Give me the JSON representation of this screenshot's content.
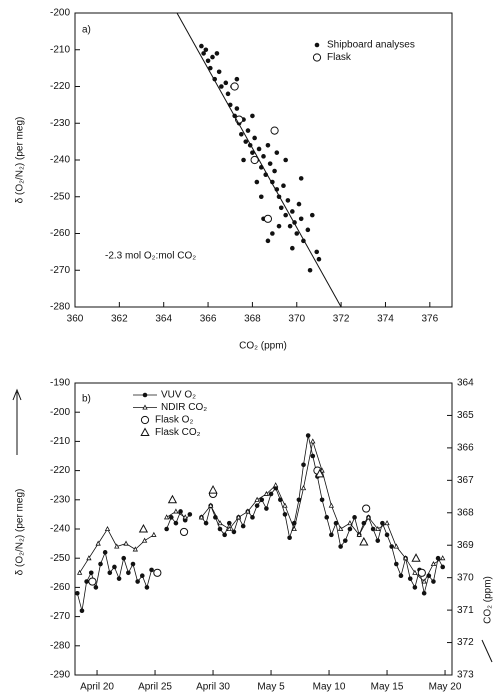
{
  "chart_data": [
    {
      "type": "scatter",
      "panel_label": "a)",
      "x_label": "CO₂ (ppm)",
      "y_label": "δ (O₂/N₂) (per meg)",
      "annotation": "-2.3 mol O₂:mol CO₂",
      "xlim": [
        360,
        377
      ],
      "ylim": [
        -280,
        -200
      ],
      "xticks": [
        360,
        362,
        364,
        366,
        368,
        370,
        372,
        374,
        376
      ],
      "yticks": [
        -280,
        -270,
        -260,
        -250,
        -240,
        -230,
        -220,
        -210,
        -200
      ],
      "legend": "upper right",
      "series": [
        {
          "name": "Shipboard analyses",
          "color": "#111111",
          "marker": "filled-circle",
          "line": false,
          "x": [
            365.7,
            365.8,
            365.9,
            366.0,
            366.1,
            366.2,
            366.3,
            366.5,
            366.6,
            366.8,
            366.9,
            367.0,
            367.1,
            367.2,
            367.3,
            367.4,
            367.5,
            367.6,
            367.7,
            367.8,
            367.9,
            368.0,
            368.1,
            368.2,
            368.3,
            368.4,
            368.5,
            368.6,
            368.7,
            368.8,
            368.9,
            369.0,
            369.1,
            369.2,
            369.3,
            369.4,
            369.5,
            369.6,
            369.7,
            369.8,
            369.9,
            370.0,
            370.1,
            370.2,
            370.3,
            370.5,
            370.7,
            370.9,
            371.0,
            370.6,
            368.7,
            368.9,
            369.2,
            368.4,
            368.2,
            367.6,
            368.0,
            369.1,
            369.5,
            370.2,
            366.4,
            367.3,
            368.5,
            369.8
          ],
          "values": [
            -209,
            -211,
            -210,
            -213,
            -215,
            -212,
            -218,
            -216,
            -220,
            -219,
            -222,
            -225,
            -220,
            -228,
            -226,
            -230,
            -233,
            -229,
            -235,
            -232,
            -236,
            -238,
            -234,
            -240,
            -237,
            -242,
            -239,
            -244,
            -236,
            -241,
            -246,
            -243,
            -248,
            -250,
            -253,
            -247,
            -255,
            -251,
            -258,
            -254,
            -257,
            -260,
            -252,
            -256,
            -262,
            -259,
            -255,
            -265,
            -267,
            -270,
            -262,
            -260,
            -258,
            -250,
            -246,
            -240,
            -228,
            -238,
            -240,
            -245,
            -211,
            -218,
            -256,
            -264
          ]
        },
        {
          "name": "Flask",
          "color": "#111111",
          "marker": "open-circle",
          "line": false,
          "x": [
            367.2,
            369.0,
            368.1,
            367.4,
            368.7
          ],
          "values": [
            -220,
            -232,
            -240,
            -229,
            -256
          ]
        },
        {
          "color": "#111111",
          "marker": "none",
          "line": true,
          "x": [
            364.6,
            372.0
          ],
          "values": [
            -200,
            -280
          ]
        }
      ]
    },
    {
      "type": "line",
      "panel_label": "b)",
      "y_label": "δ (O₂/N₂) (per meg)",
      "y2_label": "CO₂ (ppm)",
      "xlim": [
        18.1,
        50.6
      ],
      "ylim": [
        -290,
        -190
      ],
      "xticks": [
        {
          "value": 20,
          "label": "April 20"
        },
        {
          "value": 25,
          "label": "April 25"
        },
        {
          "value": 30,
          "label": "April 30"
        },
        {
          "value": 35,
          "label": "May 5"
        },
        {
          "value": 40,
          "label": "May 10"
        },
        {
          "value": 45,
          "label": "May 15"
        },
        {
          "value": 50,
          "label": "May 20"
        }
      ],
      "yticks": [
        -290,
        -280,
        -270,
        -260,
        -250,
        -240,
        -230,
        -220,
        -210,
        -200,
        -190
      ],
      "y2lim": [
        373,
        364
      ],
      "y2ticks": [
        364,
        365,
        366,
        367,
        368,
        369,
        370,
        371,
        372,
        373
      ],
      "legend": "upper left",
      "series": [
        {
          "name": "VUV O₂",
          "color": "#111111",
          "marker": "filled-circle",
          "line": true,
          "x": [
            18.3,
            18.7,
            19.1,
            19.5,
            19.9,
            20.3,
            20.7,
            21.1,
            21.5,
            21.9,
            22.3,
            22.7,
            23.1,
            23.5,
            23.9,
            24.3,
            24.7,
            25.1,
            25.6,
            26.0,
            26.4,
            26.8,
            27.2,
            27.6,
            28.0,
            28.5,
            29.0,
            29.4,
            29.8,
            30.2,
            30.6,
            31.0,
            31.4,
            31.8,
            32.2,
            32.6,
            33.0,
            33.4,
            33.8,
            34.2,
            34.6,
            35.0,
            35.4,
            35.8,
            36.2,
            36.6,
            37.0,
            37.4,
            37.8,
            38.2,
            38.6,
            39.0,
            39.4,
            39.8,
            40.2,
            40.6,
            41.0,
            41.4,
            41.8,
            42.2,
            42.6,
            43.0,
            43.4,
            43.8,
            44.2,
            44.6,
            45.0,
            45.4,
            45.8,
            46.2,
            46.6,
            47.0,
            47.4,
            47.8,
            48.2,
            48.6,
            49.0,
            49.4,
            49.8
          ],
          "values": [
            -262,
            -268,
            -258,
            -255,
            -260,
            -252,
            -248,
            -255,
            -253,
            -257,
            -250,
            -255,
            -252,
            -258,
            -256,
            -260,
            -254,
            -255,
            null,
            -240,
            -236,
            -238,
            -234,
            -237,
            -235,
            null,
            -236,
            -238,
            -232,
            -236,
            -240,
            -242,
            -238,
            -241,
            -236,
            -239,
            -234,
            -236,
            -232,
            -230,
            -233,
            -228,
            -226,
            -230,
            -235,
            -243,
            -238,
            -230,
            -218,
            -208,
            -215,
            -222,
            -230,
            -236,
            -242,
            -238,
            -246,
            -244,
            -240,
            -236,
            -242,
            -238,
            -236,
            -240,
            -244,
            -238,
            -242,
            -246,
            -252,
            -256,
            -250,
            -257,
            -260,
            -254,
            -262,
            -256,
            -258,
            -250,
            -253
          ]
        },
        {
          "name": "NDIR CO₂",
          "color": "#111111",
          "marker": "small-triangle",
          "line": true,
          "axis": "y2",
          "x": [
            18.5,
            19.3,
            20.1,
            20.9,
            21.7,
            22.5,
            23.3,
            24.1,
            24.9,
            25.4,
            26.0,
            26.8,
            27.6,
            28.3,
            29.0,
            29.8,
            30.6,
            31.4,
            32.2,
            33.0,
            33.8,
            34.6,
            35.4,
            36.2,
            37.0,
            37.8,
            38.6,
            39.4,
            40.2,
            41.0,
            41.8,
            42.6,
            43.4,
            44.2,
            45.0,
            45.8,
            46.6,
            47.4,
            48.2,
            49.0,
            49.8
          ],
          "values": [
            369.85,
            369.4,
            368.95,
            368.5,
            369.04,
            368.95,
            369.13,
            368.86,
            368.68,
            null,
            368.14,
            367.96,
            368.14,
            null,
            368.14,
            367.78,
            368.32,
            368.5,
            368.14,
            367.96,
            367.6,
            367.42,
            367.15,
            367.78,
            368.5,
            367.24,
            365.8,
            366.7,
            367.78,
            368.5,
            368.32,
            368.68,
            368.14,
            368.5,
            368.32,
            369.04,
            369.4,
            369.85,
            370.12,
            369.58,
            369.4
          ]
        },
        {
          "name": "Flask O₂",
          "color": "#111111",
          "marker": "open-circle",
          "line": false,
          "x": [
            19.6,
            25.2,
            27.5,
            30.0,
            39.0,
            43.2,
            48.0
          ],
          "values": [
            -258,
            -255,
            -241,
            -228,
            -220,
            -233,
            -255
          ]
        },
        {
          "name": "Flask CO₂",
          "color": "#111111",
          "marker": "open-triangle",
          "line": false,
          "axis": "y2",
          "x": [
            24.0,
            26.5,
            30.0,
            39.2,
            43.0,
            47.5
          ],
          "values": [
            368.5,
            367.6,
            367.3,
            366.8,
            368.9,
            369.4
          ]
        }
      ]
    }
  ]
}
